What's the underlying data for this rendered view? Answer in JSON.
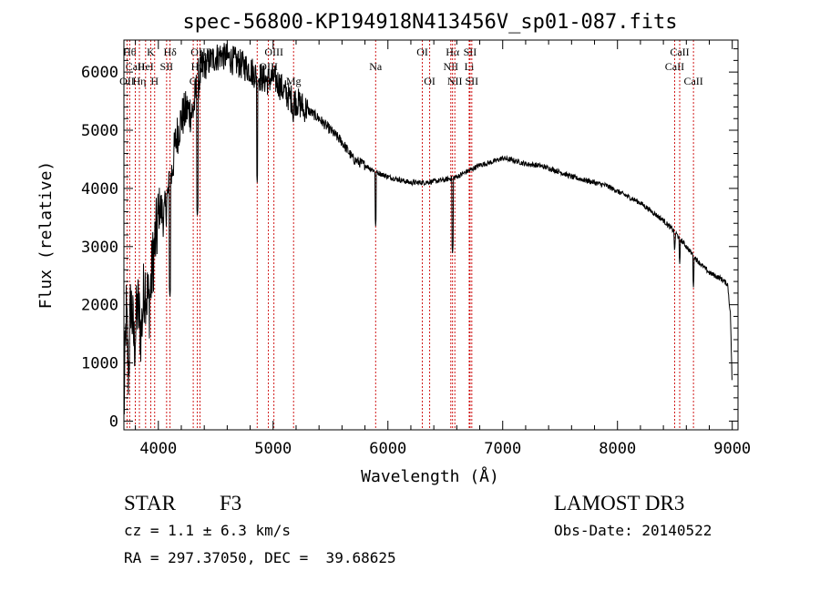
{
  "chart_data": {
    "type": "line",
    "title": "spec-56800-KP194918N413456V_sp01-087.fits",
    "xlabel": "Wavelength (Å)",
    "ylabel": "Flux (relative)",
    "xlim": [
      3700,
      9050
    ],
    "ylim": [
      -150,
      6550
    ],
    "xticks": [
      4000,
      5000,
      6000,
      7000,
      8000,
      9000
    ],
    "yticks": [
      0,
      1000,
      2000,
      3000,
      4000,
      5000,
      6000
    ],
    "series": [
      {
        "name": "flux",
        "anchors": [
          [
            3700,
            100
          ],
          [
            3720,
            1900
          ],
          [
            3740,
            800
          ],
          [
            3760,
            2100
          ],
          [
            3790,
            1300
          ],
          [
            3820,
            2000
          ],
          [
            3850,
            1500
          ],
          [
            3880,
            2400
          ],
          [
            3920,
            2000
          ],
          [
            3960,
            2900
          ],
          [
            3990,
            3300
          ],
          [
            4010,
            3700
          ],
          [
            4050,
            3500
          ],
          [
            4080,
            3850
          ],
          [
            4110,
            4150
          ],
          [
            4150,
            4800
          ],
          [
            4200,
            5200
          ],
          [
            4250,
            5350
          ],
          [
            4300,
            5300
          ],
          [
            4350,
            5900
          ],
          [
            4400,
            6100
          ],
          [
            4450,
            6200
          ],
          [
            4500,
            6250
          ],
          [
            4550,
            6300
          ],
          [
            4600,
            6250
          ],
          [
            4650,
            6200
          ],
          [
            4700,
            6150
          ],
          [
            4750,
            6100
          ],
          [
            4800,
            6050
          ],
          [
            4850,
            5950
          ],
          [
            4900,
            5900
          ],
          [
            4950,
            5850
          ],
          [
            5000,
            5900
          ],
          [
            5050,
            5800
          ],
          [
            5100,
            5650
          ],
          [
            5150,
            5550
          ],
          [
            5200,
            5500
          ],
          [
            5300,
            5350
          ],
          [
            5400,
            5200
          ],
          [
            5500,
            5000
          ],
          [
            5600,
            4800
          ],
          [
            5700,
            4500
          ],
          [
            5800,
            4400
          ],
          [
            5900,
            4280
          ],
          [
            6000,
            4200
          ],
          [
            6100,
            4150
          ],
          [
            6200,
            4100
          ],
          [
            6300,
            4100
          ],
          [
            6400,
            4120
          ],
          [
            6500,
            4150
          ],
          [
            6600,
            4200
          ],
          [
            6700,
            4300
          ],
          [
            6800,
            4400
          ],
          [
            6900,
            4450
          ],
          [
            7000,
            4520
          ],
          [
            7100,
            4480
          ],
          [
            7200,
            4420
          ],
          [
            7300,
            4400
          ],
          [
            7400,
            4350
          ],
          [
            7500,
            4280
          ],
          [
            7600,
            4200
          ],
          [
            7700,
            4150
          ],
          [
            7800,
            4100
          ],
          [
            7900,
            4050
          ],
          [
            8000,
            3950
          ],
          [
            8100,
            3850
          ],
          [
            8200,
            3750
          ],
          [
            8300,
            3600
          ],
          [
            8400,
            3450
          ],
          [
            8500,
            3250
          ],
          [
            8600,
            3000
          ],
          [
            8700,
            2750
          ],
          [
            8800,
            2550
          ],
          [
            8900,
            2450
          ],
          [
            8960,
            2350
          ],
          [
            8985,
            1800
          ],
          [
            9000,
            500
          ]
        ],
        "absorption_dips": [
          [
            4101,
            2100
          ],
          [
            4340,
            3500
          ],
          [
            4861,
            4100
          ],
          [
            5175,
            5100
          ],
          [
            5270,
            5200
          ],
          [
            5893,
            3350
          ],
          [
            6563,
            2850
          ],
          [
            8498,
            2900
          ],
          [
            8542,
            2700
          ],
          [
            8662,
            2300
          ]
        ]
      }
    ],
    "line_markers": [
      {
        "wavelength": 3750,
        "label": "Hθ",
        "row": 0
      },
      {
        "wavelength": 3799,
        "label": "CaII",
        "row": 1
      },
      {
        "wavelength": 3727,
        "label": "OII",
        "row": 2
      },
      {
        "wavelength": 3835,
        "label": "Hη",
        "row": 2
      },
      {
        "wavelength": 3889,
        "label": "HeI",
        "row": 1
      },
      {
        "wavelength": 3934,
        "label": "K",
        "row": 0
      },
      {
        "wavelength": 3968,
        "label": "H",
        "row": 2
      },
      {
        "wavelength": 4072,
        "label": "SII",
        "row": 1
      },
      {
        "wavelength": 4102,
        "label": "Hδ",
        "row": 0
      },
      {
        "wavelength": 4304,
        "label": "G",
        "row": 2
      },
      {
        "wavelength": 4340,
        "label": "Hγ",
        "row": 1
      },
      {
        "wavelength": 4363,
        "label": "OIII",
        "row": 0
      },
      {
        "wavelength": 4861,
        "label": "Hβ",
        "row": 2
      },
      {
        "wavelength": 4959,
        "label": "OIII",
        "row": 1
      },
      {
        "wavelength": 5007,
        "label": "OIII",
        "row": 0
      },
      {
        "wavelength": 5178,
        "label": "Mg",
        "row": 2
      },
      {
        "wavelength": 5893,
        "label": "Na",
        "row": 1
      },
      {
        "wavelength": 6300,
        "label": "OI",
        "row": 0
      },
      {
        "wavelength": 6364,
        "label": "OI",
        "row": 2
      },
      {
        "wavelength": 6548,
        "label": "NII",
        "row": 1
      },
      {
        "wavelength": 6563,
        "label": "Hα",
        "row": 0
      },
      {
        "wavelength": 6583,
        "label": "NII",
        "row": 2
      },
      {
        "wavelength": 6708,
        "label": "Li",
        "row": 1
      },
      {
        "wavelength": 6716,
        "label": "SII",
        "row": 0
      },
      {
        "wavelength": 6731,
        "label": "SII",
        "row": 2
      },
      {
        "wavelength": 8498,
        "label": "CaII",
        "row": 1
      },
      {
        "wavelength": 8542,
        "label": "CaII",
        "row": 0
      },
      {
        "wavelength": 8662,
        "label": "CaII",
        "row": 2
      }
    ],
    "grid": false,
    "legend": "none"
  },
  "info": {
    "object_class": "STAR",
    "subclass": "F3",
    "survey": "LAMOST DR3",
    "velocity_text": "cz = 1.1 ± 6.3 km/s",
    "obs_date_text": "Obs-Date: 20140522",
    "coords_text": "RA = 297.37050, DEC =  39.68625"
  }
}
